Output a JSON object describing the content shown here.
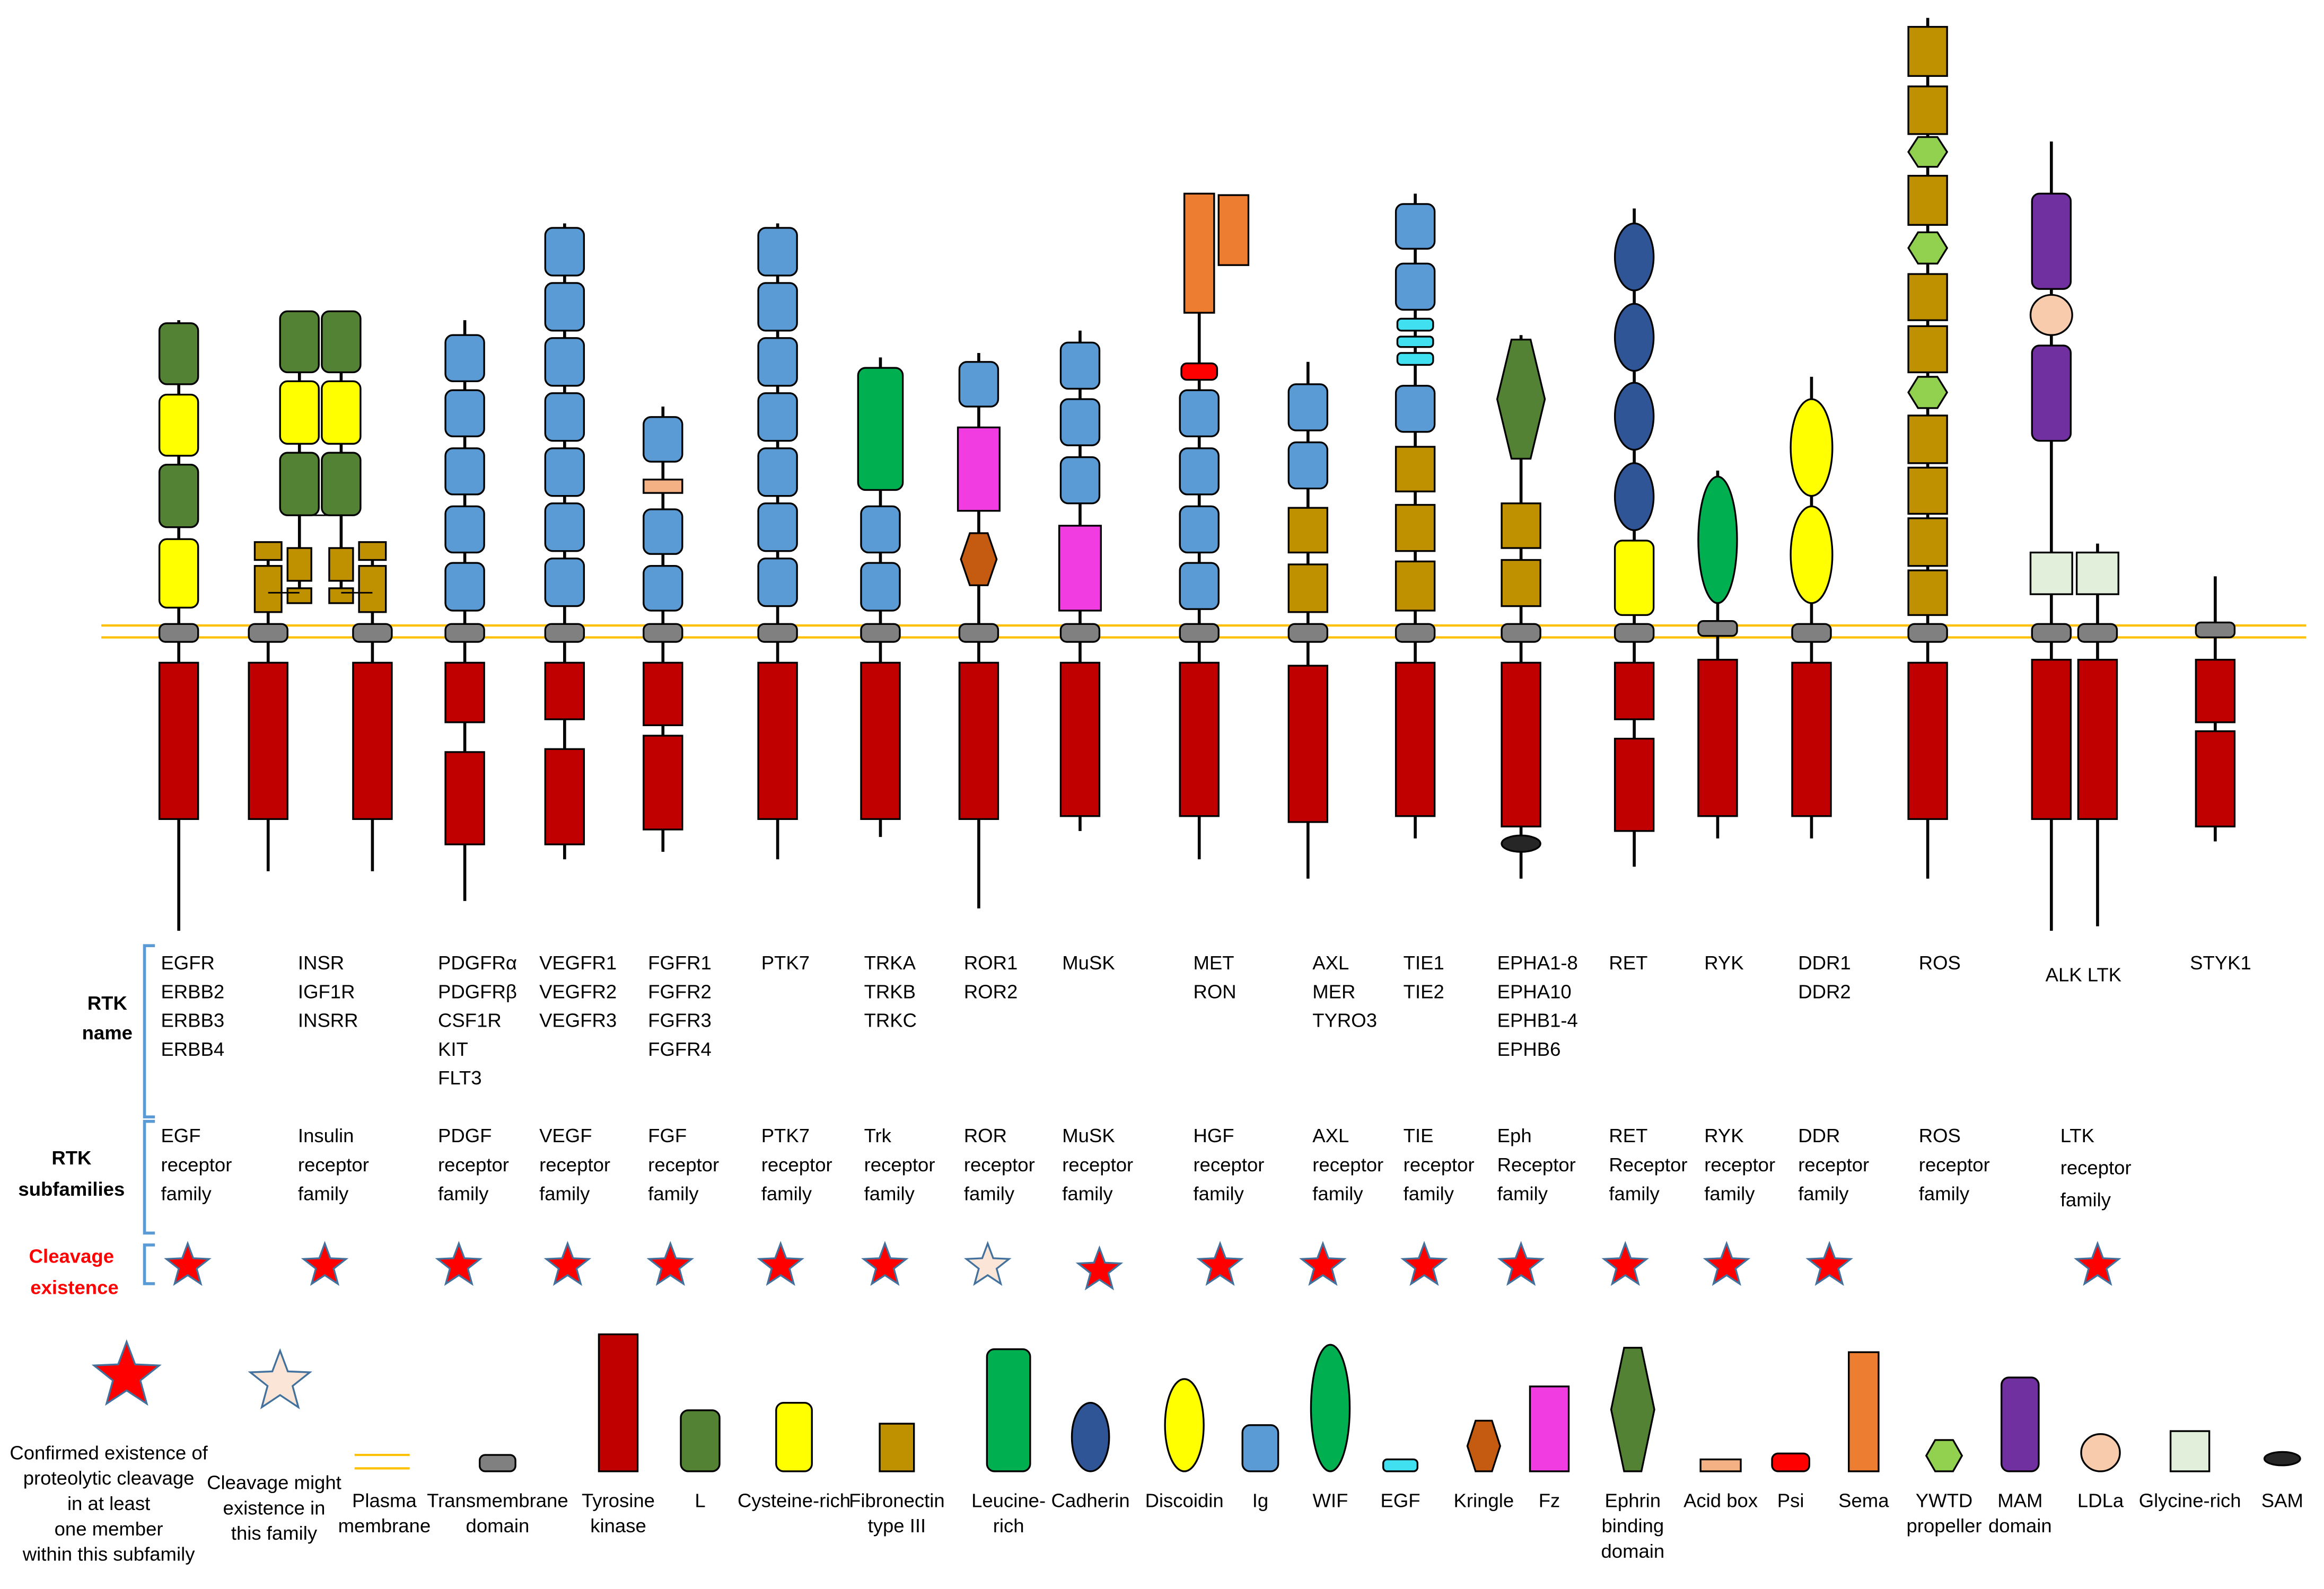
{
  "colors": {
    "membrane": "#FFC000",
    "transmembrane": "#808080",
    "tyrosine_kinase": "#C00000",
    "L": "#548235",
    "cysteine_rich": "#FFFF00",
    "fibronectin": "#BF9000",
    "leucine_rich": "#00B050",
    "cadherin": "#2F5597",
    "discoidin": "#FFFF00",
    "ig": "#5B9BD5",
    "wif": "#00B050",
    "egf": "#40E0F0",
    "kringle": "#C55A11",
    "fz": "#F03CE0",
    "ephrin": "#548235",
    "acid_box": "#F4B183",
    "psi": "#FF0000",
    "sema": "#ED7D31",
    "ywtd": "#92D050",
    "mam": "#7030A0",
    "ldla": "#F8CBAD",
    "glycine_rich": "#E2EFDA",
    "sam": "#262626",
    "star_confirmed": "#FF0000",
    "star_possible": "#FBE5D6",
    "star_outline": "#41719C",
    "bracket": "#5B9BD5"
  },
  "row_labels": {
    "rtk_name": [
      "RTK",
      "name"
    ],
    "rtk_subfamilies": [
      "RTK",
      "subfamilies"
    ],
    "cleavage": [
      "Cleavage",
      "existence"
    ]
  },
  "families": [
    {
      "names": [
        "EGFR",
        "ERBB2",
        "ERBB3",
        "ERBB4"
      ],
      "subfamily": [
        "EGF",
        "receptor",
        "family"
      ],
      "cleavage": "confirmed"
    },
    {
      "names": [
        "INSR",
        "IGF1R",
        "INSRR"
      ],
      "subfamily": [
        "Insulin",
        "receptor",
        "family"
      ],
      "cleavage": "confirmed"
    },
    {
      "names": [
        "PDGFRα",
        "PDGFRβ",
        "CSF1R",
        "KIT",
        "FLT3"
      ],
      "subfamily": [
        "PDGF",
        "receptor",
        "family"
      ],
      "cleavage": "confirmed"
    },
    {
      "names": [
        "VEGFR1",
        "VEGFR2",
        "VEGFR3"
      ],
      "subfamily": [
        "VEGF",
        "receptor",
        "family"
      ],
      "cleavage": "confirmed"
    },
    {
      "names": [
        "FGFR1",
        "FGFR2",
        "FGFR3",
        "FGFR4"
      ],
      "subfamily": [
        "FGF",
        "receptor",
        "family"
      ],
      "cleavage": "confirmed"
    },
    {
      "names": [
        "PTK7"
      ],
      "subfamily": [
        "PTK7",
        "receptor",
        "family"
      ],
      "cleavage": "confirmed"
    },
    {
      "names": [
        "TRKA",
        "TRKB",
        "TRKC"
      ],
      "subfamily": [
        "Trk",
        "receptor",
        "family"
      ],
      "cleavage": "confirmed"
    },
    {
      "names": [
        "ROR1",
        "ROR2"
      ],
      "subfamily": [
        "ROR",
        "receptor",
        "family"
      ],
      "cleavage": "possible"
    },
    {
      "names": [
        "MuSK"
      ],
      "subfamily": [
        "MuSK",
        "receptor",
        "family"
      ],
      "cleavage": "confirmed"
    },
    {
      "names": [
        "MET",
        "RON"
      ],
      "subfamily": [
        "HGF",
        "receptor",
        "family"
      ],
      "cleavage": "confirmed"
    },
    {
      "names": [
        "AXL",
        "MER",
        "TYRO3"
      ],
      "subfamily": [
        "AXL",
        "receptor",
        "family"
      ],
      "cleavage": "confirmed"
    },
    {
      "names": [
        "TIE1",
        "TIE2"
      ],
      "subfamily": [
        "TIE",
        "receptor",
        "family"
      ],
      "cleavage": "confirmed"
    },
    {
      "names": [
        "EPHA1-8",
        "EPHA10",
        "EPHB1-4",
        "EPHB6"
      ],
      "subfamily": [
        "Eph",
        "Receptor",
        "family"
      ],
      "cleavage": "confirmed"
    },
    {
      "names": [
        "RET"
      ],
      "subfamily": [
        "RET",
        "Receptor",
        "family"
      ],
      "cleavage": "confirmed"
    },
    {
      "names": [
        "RYK"
      ],
      "subfamily": [
        "RYK",
        "receptor",
        "family"
      ],
      "cleavage": "confirmed"
    },
    {
      "names": [
        "DDR1",
        "DDR2"
      ],
      "subfamily": [
        "DDR",
        "receptor",
        "family"
      ],
      "cleavage": "confirmed"
    },
    {
      "names": [
        "ROS"
      ],
      "subfamily": [
        "ROS",
        "receptor",
        "family"
      ],
      "cleavage": "none"
    },
    {
      "names": [
        "ALK LTK"
      ],
      "subfamily": [
        "LTK",
        "receptor",
        "family"
      ],
      "cleavage": "confirmed"
    },
    {
      "names": [
        "STYK1"
      ],
      "subfamily": [],
      "cleavage": "none"
    }
  ],
  "legend": {
    "confirmed": [
      "Confirmed existence of",
      "proteolytic cleavage",
      "in at least",
      "one member",
      "within this subfamily"
    ],
    "possible": [
      "Cleavage might",
      "existence in",
      "this family"
    ],
    "domains": [
      {
        "key": "membrane",
        "label": [
          "Plasma",
          "membrane"
        ]
      },
      {
        "key": "transmembrane",
        "label": [
          "Transmembrane",
          "domain"
        ]
      },
      {
        "key": "tyrosine_kinase",
        "label": [
          "Tyrosine",
          "kinase"
        ]
      },
      {
        "key": "L",
        "label": [
          "L"
        ]
      },
      {
        "key": "cysteine_rich",
        "label": [
          "Cysteine-rich"
        ]
      },
      {
        "key": "fibronectin",
        "label": [
          "Fibronectin",
          "type III"
        ]
      },
      {
        "key": "leucine_rich",
        "label": [
          "Leucine-",
          "rich"
        ]
      },
      {
        "key": "cadherin",
        "label": [
          "Cadherin"
        ]
      },
      {
        "key": "discoidin",
        "label": [
          "Discoidin"
        ]
      },
      {
        "key": "ig",
        "label": [
          "Ig"
        ]
      },
      {
        "key": "wif",
        "label": [
          "WIF"
        ]
      },
      {
        "key": "egf",
        "label": [
          "EGF"
        ]
      },
      {
        "key": "kringle",
        "label": [
          "Kringle"
        ]
      },
      {
        "key": "fz",
        "label": [
          "Fz"
        ]
      },
      {
        "key": "ephrin",
        "label": [
          "Ephrin",
          "binding",
          "domain"
        ]
      },
      {
        "key": "acid_box",
        "label": [
          "Acid box"
        ]
      },
      {
        "key": "psi",
        "label": [
          "Psi"
        ]
      },
      {
        "key": "sema",
        "label": [
          "Sema"
        ]
      },
      {
        "key": "ywtd",
        "label": [
          "YWTD",
          "propeller"
        ]
      },
      {
        "key": "mam",
        "label": [
          "MAM",
          "domain"
        ]
      },
      {
        "key": "ldla",
        "label": [
          "LDLa"
        ]
      },
      {
        "key": "glycine_rich",
        "label": [
          "Glycine-rich"
        ]
      },
      {
        "key": "sam",
        "label": [
          "SAM"
        ]
      }
    ]
  }
}
